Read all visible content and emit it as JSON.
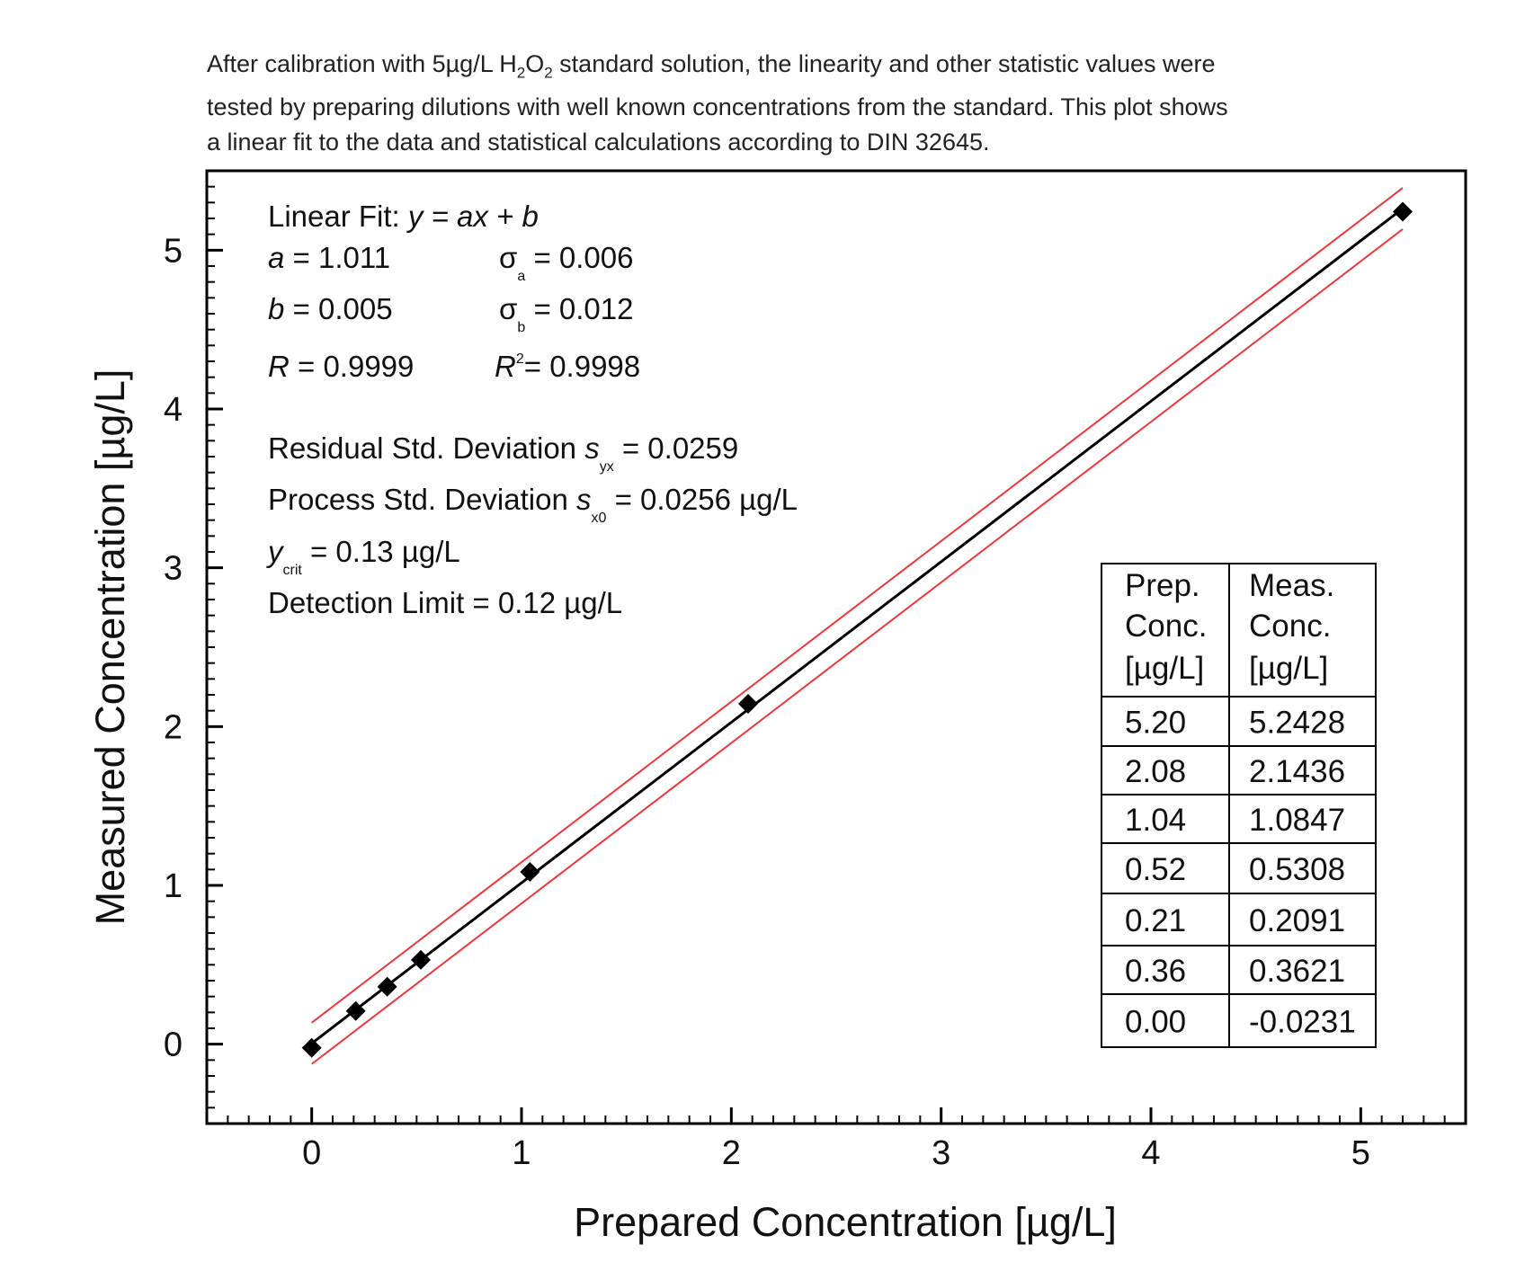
{
  "caption": {
    "line1_a": "After calibration with 5µg/L H",
    "line1_sub1": "2",
    "line1_b": "O",
    "line1_sub2": "2",
    "line1_c": " standard solution, the linearity and other statistic values were",
    "line2": "tested by preparing dilutions with well known concentrations from the standard. This plot shows",
    "line3": "a linear fit to the data and statistical calculations according to DIN 32645."
  },
  "annotations": {
    "fit_label": "Linear Fit: ",
    "fit_eq": "y = ax + b",
    "a_sym": "a",
    "a_val": " = 1.011",
    "sigma": "σ",
    "sigma_a_sub": "a",
    "sigma_a_val": " = 0.006",
    "b_sym": "b",
    "b_val": " = 0.005",
    "sigma_b_sub": "b",
    "sigma_b_val": " = 0.012",
    "r_sym": "R",
    "r_val": " = 0.9999",
    "r2_sym": "R",
    "r2_sup": "2",
    "r2_val": "= 0.9998",
    "resid_label": "Residual Std. Deviation ",
    "s_sym": "s",
    "resid_sub": "yx",
    "resid_val": " = 0.0259",
    "proc_label": "Process Std. Deviation  ",
    "proc_sub": "x0",
    "proc_val": " = 0.0256 µg/L",
    "ycrit_sym": "y",
    "ycrit_sub": "crit",
    "ycrit_val": " = 0.13 µg/L",
    "detection": "Detection Limit = 0.12 µg/L"
  },
  "table": {
    "header_col1": [
      "Prep.",
      "Conc.",
      "[µg/L]"
    ],
    "header_col2": [
      "Meas.",
      "Conc.",
      "[µg/L]"
    ],
    "rows": [
      [
        "5.20",
        "5.2428"
      ],
      [
        "2.08",
        "2.1436"
      ],
      [
        "1.04",
        "1.0847"
      ],
      [
        "0.52",
        "0.5308"
      ],
      [
        "0.21",
        "0.2091"
      ],
      [
        "0.36",
        "0.3621"
      ],
      [
        "0.00",
        "-0.0231"
      ]
    ]
  },
  "colors": {
    "fit_line": "#000000",
    "confidence_band": "#e8383d",
    "points": "#000000",
    "axes": "#000000"
  },
  "chart_data": {
    "type": "scatter",
    "title": "",
    "xlabel": "Prepared Concentration [µg/L]",
    "ylabel": "Measured Concentration [µg/L]",
    "xlim": [
      -0.5,
      5.5
    ],
    "ylim": [
      -0.5,
      5.5
    ],
    "x_ticks": [
      "0",
      "1",
      "2",
      "3",
      "4",
      "5"
    ],
    "y_ticks": [
      "0",
      "1",
      "2",
      "3",
      "4",
      "5"
    ],
    "grid": false,
    "legend": "none",
    "points": {
      "x": [
        0.0,
        0.21,
        0.36,
        0.52,
        1.04,
        2.08,
        5.2
      ],
      "y": [
        -0.0231,
        0.2091,
        0.3621,
        0.5308,
        1.0847,
        2.1436,
        5.2428
      ]
    },
    "fit": {
      "slope": 1.011,
      "intercept": 0.005,
      "x_range": [
        0.0,
        5.2
      ]
    },
    "confidence_band_offset": 0.13
  }
}
